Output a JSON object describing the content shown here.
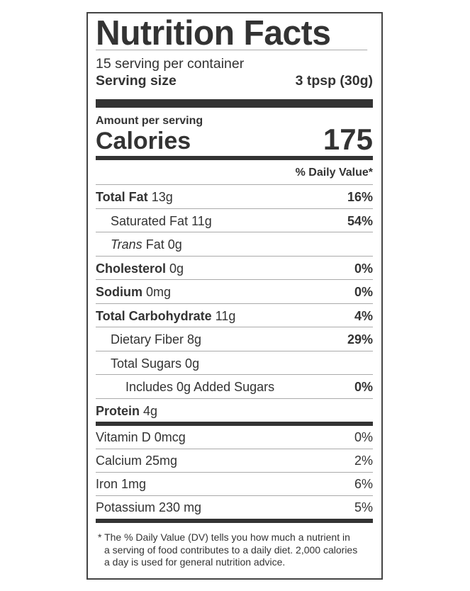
{
  "title": "Nutrition Facts",
  "servings_per_container": "15 serving per container",
  "serving_size": {
    "label": "Serving size",
    "value": "3 tpsp (30g)"
  },
  "amount_per_serving": "Amount per serving",
  "calories": {
    "label": "Calories",
    "value": "175"
  },
  "daily_value_header": "% Daily Value*",
  "nutrients": [
    {
      "name": "Total Fat",
      "amount": "13g",
      "dv": "16%"
    },
    {
      "name": "Saturated Fat 11g",
      "dv": "54%"
    },
    {
      "name_italic": "Trans",
      "name": "Fat 0g",
      "dv": ""
    },
    {
      "name": "Cholesterol",
      "amount": "0g",
      "dv": "0%"
    },
    {
      "name": "Sodium",
      "amount": "0mg",
      "dv": "0%"
    },
    {
      "name": "Total Carbohydrate",
      "amount": "11g",
      "dv": "4%"
    },
    {
      "name": "Dietary Fiber 8g",
      "dv": "29%"
    },
    {
      "name": "Total Sugars 0g",
      "dv": ""
    },
    {
      "name": "Includes 0g Added Sugars",
      "dv": "0%"
    },
    {
      "name": "Protein",
      "amount": "4g",
      "dv": ""
    }
  ],
  "vitamins": [
    {
      "name": "Vitamin D 0mcg",
      "dv": "0%"
    },
    {
      "name": "Calcium 25mg",
      "dv": "2%"
    },
    {
      "name": "Iron 1mg",
      "dv": "6%"
    },
    {
      "name": "Potassium 230 mg",
      "dv": "5%"
    }
  ],
  "footnote": [
    "* The % Daily Value (DV) tells you how much a nutrient in",
    "a serving of food contributes to a daily diet. 2,000 calories",
    "a day is used for general nutrition advice."
  ]
}
